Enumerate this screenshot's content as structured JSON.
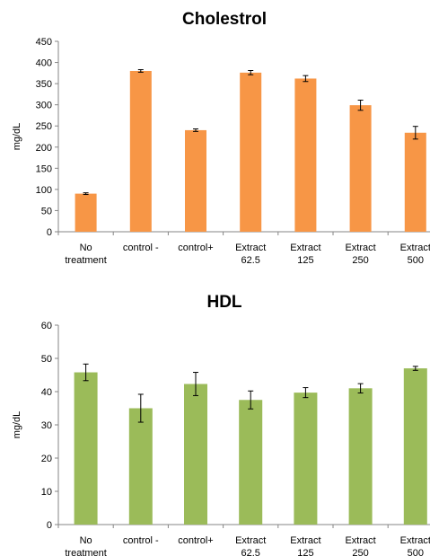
{
  "chart_data": [
    {
      "type": "bar",
      "title": "Cholestrol",
      "ylabel": "mg/dL",
      "xlabel": "",
      "ylim": [
        0,
        450
      ],
      "yticks": [
        0,
        50,
        100,
        150,
        200,
        250,
        300,
        350,
        400,
        450
      ],
      "categories": [
        [
          "No",
          "treatment"
        ],
        [
          "control -"
        ],
        [
          "control+"
        ],
        [
          "Extract",
          "62.5"
        ],
        [
          "Extract",
          "125"
        ],
        [
          "Extract",
          "250"
        ],
        [
          "Extract",
          "500"
        ]
      ],
      "values": [
        90,
        380,
        240,
        376,
        362,
        299,
        234
      ],
      "errors": [
        2,
        3,
        3,
        5,
        7,
        12,
        15
      ],
      "color": "#F79646",
      "grid": false,
      "legend": "none"
    },
    {
      "type": "bar",
      "title": "HDL",
      "ylabel": "mg/dL",
      "xlabel": "",
      "ylim": [
        0,
        60
      ],
      "yticks": [
        0,
        10,
        20,
        30,
        40,
        50,
        60
      ],
      "categories": [
        [
          "No",
          "treatment"
        ],
        [
          "control -"
        ],
        [
          "control+"
        ],
        [
          "Extract",
          "62.5"
        ],
        [
          "Extract",
          "125"
        ],
        [
          "Extract",
          "250"
        ],
        [
          "Extract",
          "500"
        ]
      ],
      "values": [
        45.8,
        35,
        42.3,
        37.5,
        39.7,
        41,
        47
      ],
      "errors": [
        2.5,
        4.2,
        3.5,
        2.7,
        1.5,
        1.4,
        0.6
      ],
      "color": "#9BBB59",
      "grid": false,
      "legend": "none"
    }
  ]
}
